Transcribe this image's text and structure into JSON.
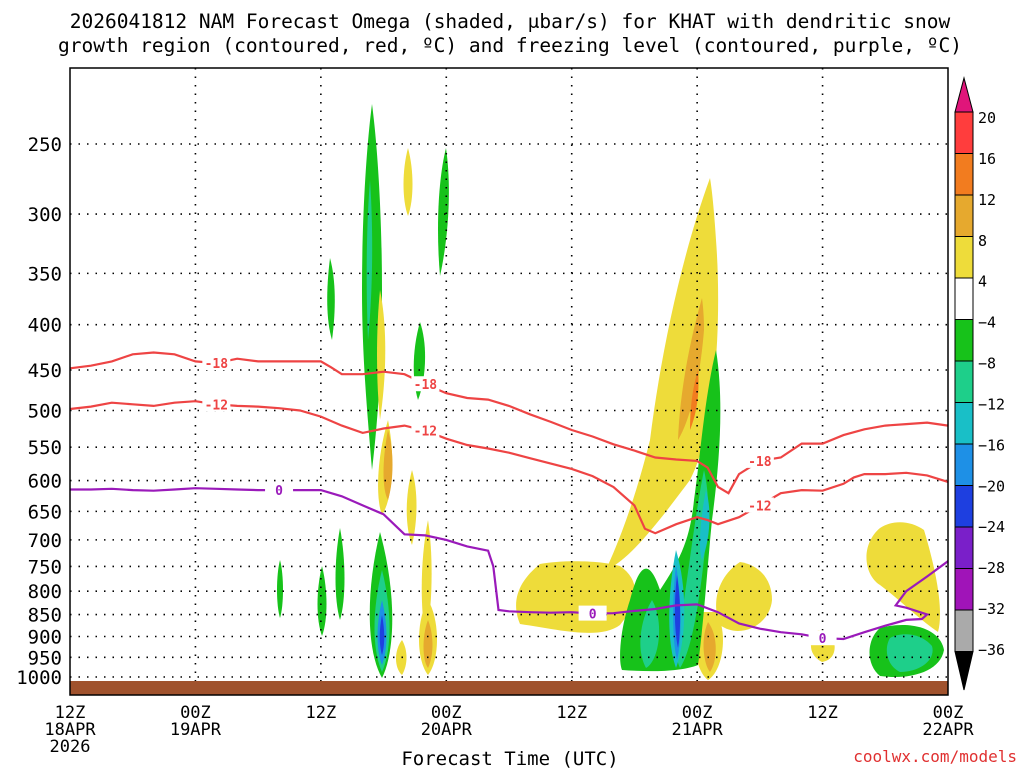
{
  "chart_data": {
    "type": "heatmap",
    "title_line1": "2026041812 NAM Forecast Omega (shaded, μbar/s) for KHAT with dendritic snow",
    "title_line2": "growth region (contoured, red, ºC) and freezing level (contoured, purple, ºC)",
    "xlabel": "Forecast Time (UTC)",
    "ylabel": "",
    "credit": "coolwx.com/models",
    "x_range_hours": [
      0,
      84
    ],
    "y_range_hpa": [
      1025,
      200
    ],
    "y_ticks": [
      250,
      300,
      350,
      400,
      450,
      500,
      550,
      600,
      650,
      700,
      750,
      800,
      850,
      900,
      950,
      1000
    ],
    "x_ticks": [
      {
        "hour": 0,
        "label1": "12Z",
        "label2": "18APR",
        "label3": "2026"
      },
      {
        "hour": 12,
        "label1": "00Z",
        "label2": "19APR",
        "label3": ""
      },
      {
        "hour": 24,
        "label1": "12Z",
        "label2": "",
        "label3": ""
      },
      {
        "hour": 36,
        "label1": "00Z",
        "label2": "20APR",
        "label3": ""
      },
      {
        "hour": 48,
        "label1": "12Z",
        "label2": "",
        "label3": ""
      },
      {
        "hour": 60,
        "label1": "00Z",
        "label2": "21APR",
        "label3": ""
      },
      {
        "hour": 72,
        "label1": "12Z",
        "label2": "",
        "label3": ""
      },
      {
        "hour": 84,
        "label1": "00Z",
        "label2": "22APR",
        "label3": ""
      }
    ],
    "colorbar": {
      "labels": [
        "20",
        "16",
        "12",
        "8",
        "4",
        "−4",
        "−8",
        "−12",
        "−16",
        "−20",
        "−24",
        "−28",
        "−32",
        "−36"
      ],
      "colors": [
        "#ff3d3d",
        "#f27c1f",
        "#e6a92e",
        "#eedc3a",
        "#ffffff",
        "#17c21a",
        "#1ecf8a",
        "#19bfc7",
        "#1e90e6",
        "#1e3fe0",
        "#7a1fc9",
        "#a014b8",
        "#aaaaaa"
      ],
      "top_color": "#e0157a",
      "bottom_color": "#000000"
    },
    "contours": [
      {
        "name": "-18C isotherm",
        "label": "-18",
        "color": "#ee4444",
        "points": [
          [
            0,
            448
          ],
          [
            2,
            445
          ],
          [
            4,
            440
          ],
          [
            6,
            432
          ],
          [
            8,
            430
          ],
          [
            10,
            432
          ],
          [
            12,
            440
          ],
          [
            14,
            442
          ],
          [
            16,
            437
          ],
          [
            18,
            440
          ],
          [
            20,
            440
          ],
          [
            22,
            440
          ],
          [
            24,
            440
          ],
          [
            25,
            447
          ],
          [
            26,
            455
          ],
          [
            28,
            455
          ],
          [
            30,
            452
          ],
          [
            32,
            455
          ],
          [
            34,
            467
          ],
          [
            36,
            478
          ],
          [
            38,
            484
          ],
          [
            40,
            486
          ],
          [
            42,
            494
          ],
          [
            44,
            505
          ],
          [
            46,
            515
          ],
          [
            48,
            526
          ],
          [
            50,
            535
          ],
          [
            52,
            546
          ],
          [
            54,
            555
          ],
          [
            56,
            565
          ],
          [
            58,
            568
          ],
          [
            60,
            570
          ],
          [
            61,
            580
          ],
          [
            62,
            610
          ],
          [
            63,
            620
          ],
          [
            64,
            590
          ],
          [
            66,
            570
          ],
          [
            68,
            565
          ],
          [
            70,
            545
          ],
          [
            72,
            545
          ],
          [
            74,
            533
          ],
          [
            76,
            525
          ],
          [
            78,
            520
          ],
          [
            80,
            518
          ],
          [
            82,
            516
          ],
          [
            84,
            520
          ]
        ]
      },
      {
        "name": "-12C isotherm",
        "label": "-12",
        "color": "#ee4444",
        "points": [
          [
            0,
            498
          ],
          [
            2,
            495
          ],
          [
            4,
            490
          ],
          [
            6,
            492
          ],
          [
            8,
            494
          ],
          [
            10,
            490
          ],
          [
            12,
            488
          ],
          [
            14,
            492
          ],
          [
            16,
            494
          ],
          [
            18,
            495
          ],
          [
            20,
            497
          ],
          [
            22,
            500
          ],
          [
            24,
            508
          ],
          [
            26,
            520
          ],
          [
            28,
            530
          ],
          [
            30,
            524
          ],
          [
            32,
            520
          ],
          [
            34,
            527
          ],
          [
            36,
            538
          ],
          [
            38,
            547
          ],
          [
            40,
            552
          ],
          [
            42,
            558
          ],
          [
            44,
            566
          ],
          [
            46,
            574
          ],
          [
            48,
            582
          ],
          [
            50,
            593
          ],
          [
            52,
            610
          ],
          [
            54,
            640
          ],
          [
            55,
            680
          ],
          [
            56,
            688
          ],
          [
            58,
            672
          ],
          [
            60,
            660
          ],
          [
            61,
            665
          ],
          [
            62,
            672
          ],
          [
            64,
            660
          ],
          [
            66,
            640
          ],
          [
            68,
            620
          ],
          [
            70,
            615
          ],
          [
            72,
            616
          ],
          [
            74,
            605
          ],
          [
            75,
            595
          ],
          [
            76,
            590
          ],
          [
            78,
            590
          ],
          [
            80,
            588
          ],
          [
            82,
            592
          ],
          [
            84,
            602
          ]
        ]
      },
      {
        "name": "0C freezing level",
        "label": "0",
        "color": "#9a1aba",
        "points": [
          [
            0,
            614
          ],
          [
            2,
            614
          ],
          [
            4,
            613
          ],
          [
            6,
            615
          ],
          [
            8,
            616
          ],
          [
            10,
            614
          ],
          [
            12,
            612
          ],
          [
            14,
            613
          ],
          [
            16,
            614
          ],
          [
            18,
            615
          ],
          [
            20,
            615
          ],
          [
            22,
            615
          ],
          [
            24,
            615
          ],
          [
            26,
            625
          ],
          [
            28,
            640
          ],
          [
            30,
            655
          ],
          [
            32,
            690
          ],
          [
            34,
            692
          ],
          [
            36,
            700
          ],
          [
            38,
            712
          ],
          [
            40,
            720
          ],
          [
            40.5,
            750
          ],
          [
            41,
            840
          ],
          [
            42,
            843
          ],
          [
            44,
            845
          ],
          [
            46,
            846
          ],
          [
            48,
            845
          ],
          [
            50,
            848
          ],
          [
            52,
            847
          ],
          [
            54,
            842
          ],
          [
            56,
            838
          ],
          [
            58,
            830
          ],
          [
            60,
            828
          ],
          [
            62,
            845
          ],
          [
            64,
            870
          ],
          [
            66,
            882
          ],
          [
            68,
            890
          ],
          [
            70,
            895
          ],
          [
            72,
            904
          ],
          [
            74,
            906
          ],
          [
            76,
            890
          ],
          [
            78,
            875
          ],
          [
            80,
            862
          ],
          [
            81.5,
            860
          ],
          [
            82,
            850
          ],
          [
            80,
            835
          ],
          [
            79,
            830
          ],
          [
            80,
            800
          ],
          [
            82,
            770
          ],
          [
            84,
            740
          ]
        ]
      }
    ],
    "omega_regions_note": "Shaded omega cells: upward (negative, green-blue) columns near 20Z Apr19 reaching 250 hPa, and near 00Z Apr21 to ~900 hPa; downward (positive, yellow-orange) column near 00Z Apr21 reaching ~270 hPa"
  }
}
